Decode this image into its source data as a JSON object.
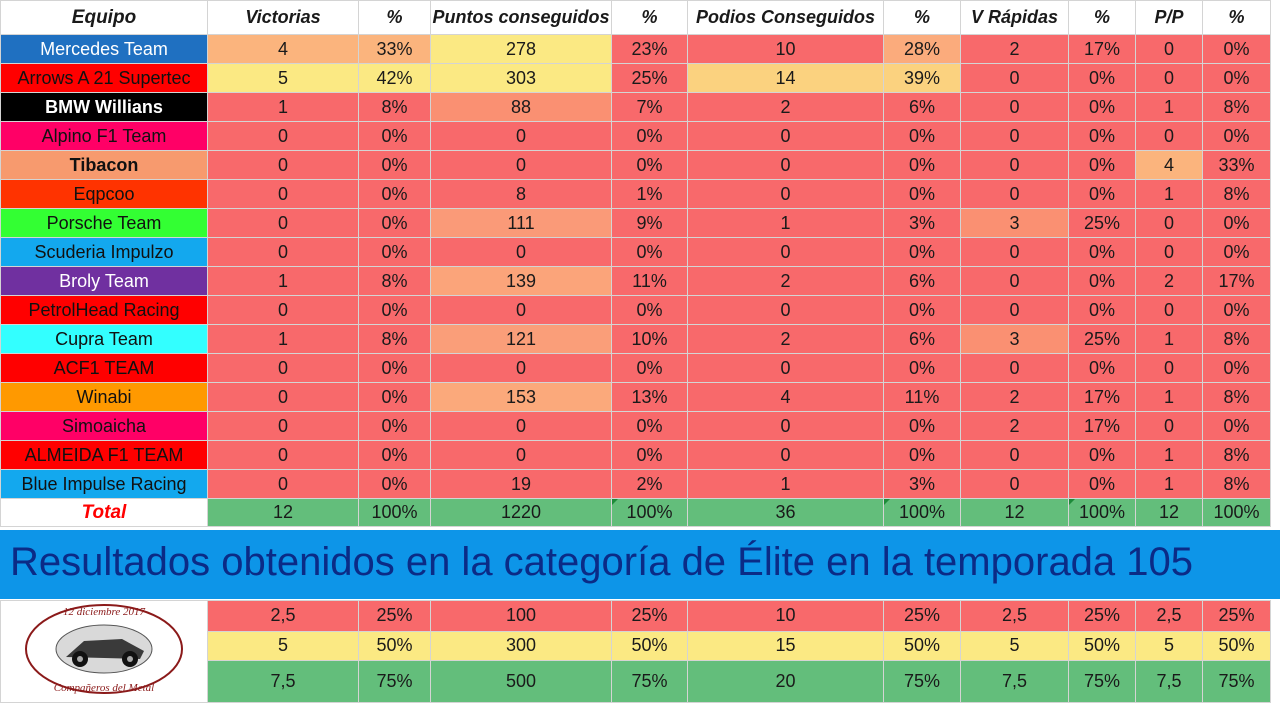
{
  "colors": {
    "header_text": "#ff0000",
    "cell_red": "#f8696b",
    "cell_salmon": "#fa9e7a",
    "cell_yellow": "#fbe983",
    "total_green": "#63be7b",
    "banner_blue": "#0d95e8",
    "banner_text": "#0b2b86"
  },
  "header": [
    "Equipo",
    "Victorias",
    "%",
    "Puntos conseguidos",
    "%",
    "Podios Conseguidos",
    "%",
    "V Rápidas",
    "%",
    "P/P",
    "%"
  ],
  "teams": [
    {
      "name": "Mercedes Team",
      "bg": "#1f70c1",
      "fg": "#ffffff",
      "bold": false,
      "cells": [
        "4",
        "33%",
        "278",
        "23%",
        "10",
        "28%",
        "2",
        "17%",
        "0",
        "0%"
      ],
      "colors": [
        "#fbb47d",
        "#fbb47d",
        "#fbe983",
        "#f8696b",
        "#f8696b",
        "#fbab7c",
        "#f8696b",
        "#f8696b",
        "#f8696b",
        "#f8696b"
      ]
    },
    {
      "name": "Arrows A 21 Supertec",
      "bg": "#ff0000",
      "fg": "#111111",
      "bold": false,
      "cells": [
        "5",
        "42%",
        "303",
        "25%",
        "14",
        "39%",
        "0",
        "0%",
        "0",
        "0%"
      ],
      "colors": [
        "#fbe983",
        "#fbe983",
        "#fbe983",
        "#f8696b",
        "#fbd27f",
        "#fbd27f",
        "#f8696b",
        "#f8696b",
        "#f8696b",
        "#f8696b"
      ]
    },
    {
      "name": "BMW Willians",
      "bg": "#000000",
      "fg": "#ffffff",
      "bold": true,
      "cells": [
        "1",
        "8%",
        "88",
        "7%",
        "2",
        "6%",
        "0",
        "0%",
        "1",
        "8%"
      ],
      "colors": [
        "#f8696b",
        "#f8696b",
        "#fa9072",
        "#f8696b",
        "#f8696b",
        "#f8696b",
        "#f8696b",
        "#f8696b",
        "#f8696b",
        "#f8696b"
      ]
    },
    {
      "name": "Alpino F1 Team",
      "bg": "#ff0066",
      "fg": "#111111",
      "bold": false,
      "cells": [
        "0",
        "0%",
        "0",
        "0%",
        "0",
        "0%",
        "0",
        "0%",
        "0",
        "0%"
      ],
      "colors": [
        "#f8696b",
        "#f8696b",
        "#f8696b",
        "#f8696b",
        "#f8696b",
        "#f8696b",
        "#f8696b",
        "#f8696b",
        "#f8696b",
        "#f8696b"
      ]
    },
    {
      "name": "Tibacon",
      "bg": "#f79a6e",
      "fg": "#111111",
      "bold": true,
      "cells": [
        "0",
        "0%",
        "0",
        "0%",
        "0",
        "0%",
        "0",
        "0%",
        "4",
        "33%"
      ],
      "colors": [
        "#f8696b",
        "#f8696b",
        "#f8696b",
        "#f8696b",
        "#f8696b",
        "#f8696b",
        "#f8696b",
        "#f8696b",
        "#fbb47d",
        "#f8696b"
      ]
    },
    {
      "name": "Eqpcoo",
      "bg": "#ff3300",
      "fg": "#111111",
      "bold": false,
      "cells": [
        "0",
        "0%",
        "8",
        "1%",
        "0",
        "0%",
        "0",
        "0%",
        "1",
        "8%"
      ],
      "colors": [
        "#f8696b",
        "#f8696b",
        "#f8696b",
        "#f8696b",
        "#f8696b",
        "#f8696b",
        "#f8696b",
        "#f8696b",
        "#f8696b",
        "#f8696b"
      ]
    },
    {
      "name": "Porsche Team",
      "bg": "#33ff33",
      "fg": "#111111",
      "bold": false,
      "cells": [
        "0",
        "0%",
        "111",
        "9%",
        "1",
        "3%",
        "3",
        "25%",
        "0",
        "0%"
      ],
      "colors": [
        "#f8696b",
        "#f8696b",
        "#fa9a78",
        "#f8696b",
        "#f8696b",
        "#f8696b",
        "#fa9072",
        "#f8696b",
        "#f8696b",
        "#f8696b"
      ]
    },
    {
      "name": "Scuderia Impulzo",
      "bg": "#13a8ee",
      "fg": "#111111",
      "bold": false,
      "cells": [
        "0",
        "0%",
        "0",
        "0%",
        "0",
        "0%",
        "0",
        "0%",
        "0",
        "0%"
      ],
      "colors": [
        "#f8696b",
        "#f8696b",
        "#f8696b",
        "#f8696b",
        "#f8696b",
        "#f8696b",
        "#f8696b",
        "#f8696b",
        "#f8696b",
        "#f8696b"
      ]
    },
    {
      "name": "Broly Team",
      "bg": "#7030a0",
      "fg": "#ffffff",
      "bold": false,
      "cells": [
        "1",
        "8%",
        "139",
        "11%",
        "2",
        "6%",
        "0",
        "0%",
        "2",
        "17%"
      ],
      "colors": [
        "#f8696b",
        "#f8696b",
        "#fba47a",
        "#f8696b",
        "#f8696b",
        "#f8696b",
        "#f8696b",
        "#f8696b",
        "#f8696b",
        "#f8696b"
      ]
    },
    {
      "name": "PetrolHead Racing",
      "bg": "#ff0000",
      "fg": "#111111",
      "bold": false,
      "cells": [
        "0",
        "0%",
        "0",
        "0%",
        "0",
        "0%",
        "0",
        "0%",
        "0",
        "0%"
      ],
      "colors": [
        "#f8696b",
        "#f8696b",
        "#f8696b",
        "#f8696b",
        "#f8696b",
        "#f8696b",
        "#f8696b",
        "#f8696b",
        "#f8696b",
        "#f8696b"
      ]
    },
    {
      "name": "Cupra Team",
      "bg": "#33ffff",
      "fg": "#111111",
      "bold": false,
      "cells": [
        "1",
        "8%",
        "121",
        "10%",
        "2",
        "6%",
        "3",
        "25%",
        "1",
        "8%"
      ],
      "colors": [
        "#f8696b",
        "#f8696b",
        "#fa9e79",
        "#f8696b",
        "#f8696b",
        "#f8696b",
        "#fa9072",
        "#f8696b",
        "#f8696b",
        "#f8696b"
      ]
    },
    {
      "name": "ACF1 TEAM",
      "bg": "#ff0000",
      "fg": "#111111",
      "bold": false,
      "cells": [
        "0",
        "0%",
        "0",
        "0%",
        "0",
        "0%",
        "0",
        "0%",
        "0",
        "0%"
      ],
      "colors": [
        "#f8696b",
        "#f8696b",
        "#f8696b",
        "#f8696b",
        "#f8696b",
        "#f8696b",
        "#f8696b",
        "#f8696b",
        "#f8696b",
        "#f8696b"
      ]
    },
    {
      "name": "Winabi",
      "bg": "#ff9900",
      "fg": "#111111",
      "bold": false,
      "cells": [
        "0",
        "0%",
        "153",
        "13%",
        "4",
        "11%",
        "2",
        "17%",
        "1",
        "8%"
      ],
      "colors": [
        "#f8696b",
        "#f8696b",
        "#fba97b",
        "#f8696b",
        "#f8696b",
        "#f8696b",
        "#f8696b",
        "#f8696b",
        "#f8696b",
        "#f8696b"
      ]
    },
    {
      "name": "Simoaicha",
      "bg": "#ff0066",
      "fg": "#111111",
      "bold": false,
      "cells": [
        "0",
        "0%",
        "0",
        "0%",
        "0",
        "0%",
        "2",
        "17%",
        "0",
        "0%"
      ],
      "colors": [
        "#f8696b",
        "#f8696b",
        "#f8696b",
        "#f8696b",
        "#f8696b",
        "#f8696b",
        "#f8696b",
        "#f8696b",
        "#f8696b",
        "#f8696b"
      ]
    },
    {
      "name": "ALMEIDA F1 TEAM",
      "bg": "#ff0000",
      "fg": "#111111",
      "bold": false,
      "cells": [
        "0",
        "0%",
        "0",
        "0%",
        "0",
        "0%",
        "0",
        "0%",
        "1",
        "8%"
      ],
      "colors": [
        "#f8696b",
        "#f8696b",
        "#f8696b",
        "#f8696b",
        "#f8696b",
        "#f8696b",
        "#f8696b",
        "#f8696b",
        "#f8696b",
        "#f8696b"
      ]
    },
    {
      "name": "Blue Impulse Racing",
      "bg": "#13a8ee",
      "fg": "#111111",
      "bold": false,
      "cells": [
        "0",
        "0%",
        "19",
        "2%",
        "1",
        "3%",
        "0",
        "0%",
        "1",
        "8%"
      ],
      "colors": [
        "#f8696b",
        "#f8696b",
        "#f8696b",
        "#f8696b",
        "#f8696b",
        "#f8696b",
        "#f8696b",
        "#f8696b",
        "#f8696b",
        "#f8696b"
      ]
    }
  ],
  "total": {
    "label": "Total",
    "cells": [
      "12",
      "100%",
      "1220",
      "100%",
      "36",
      "100%",
      "12",
      "100%",
      "12",
      "100%"
    ]
  },
  "banner": "Resultados obtenidos en la categoría de Élite en la temporada 105",
  "logo_text": "12 diciembre 2017 · Compañeros del Metal",
  "thresholds": [
    {
      "bg": "#f8696b",
      "cells": [
        "2,5",
        "25%",
        "100",
        "25%",
        "10",
        "25%",
        "2,5",
        "25%",
        "2,5",
        "25%"
      ]
    },
    {
      "bg": "#fbe983",
      "cells": [
        "5",
        "50%",
        "300",
        "50%",
        "15",
        "50%",
        "5",
        "50%",
        "5",
        "50%"
      ]
    },
    {
      "bg": "#63be7b",
      "cells": [
        "7,5",
        "75%",
        "500",
        "75%",
        "20",
        "75%",
        "7,5",
        "75%",
        "7,5",
        "75%"
      ]
    }
  ]
}
